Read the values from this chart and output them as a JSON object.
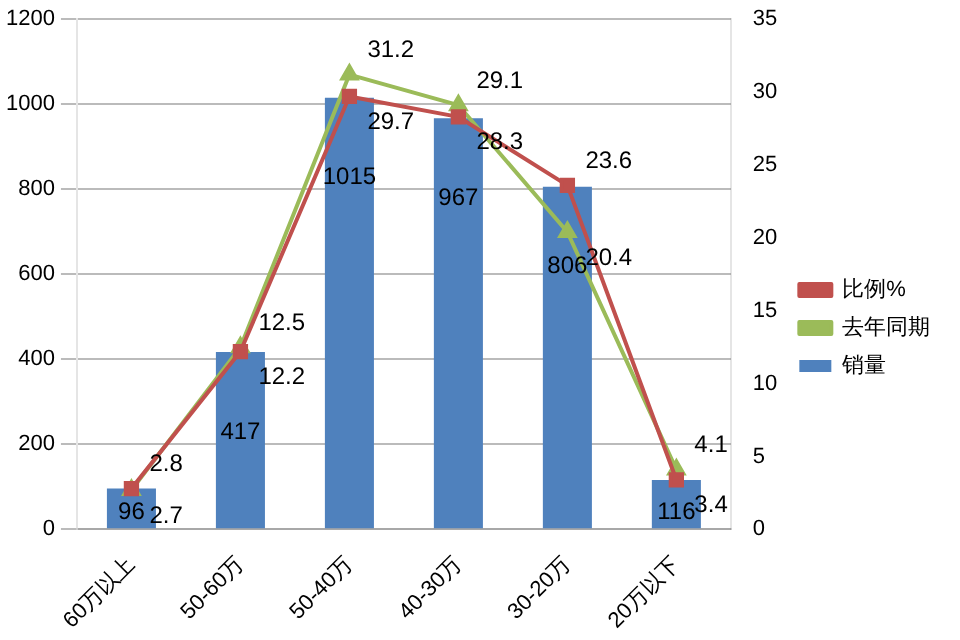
{
  "chart_data": {
    "type": "bar",
    "categories": [
      "60万以上",
      "50-60万",
      "50-40万",
      "40-30万",
      "30-20万",
      "20万以下"
    ],
    "series": [
      {
        "name": "销量",
        "color": "#4f81bd",
        "values": [
          96,
          417,
          1015,
          967,
          806,
          116
        ]
      },
      {
        "name": "比例%",
        "type": "line",
        "axis": "y2",
        "color": "#c0504d",
        "marker": "square",
        "values": [
          2.8,
          12.2,
          29.7,
          28.3,
          23.6,
          3.4
        ]
      },
      {
        "name": "去年同期",
        "type": "line",
        "axis": "y2",
        "color": "#9bbb59",
        "marker": "triangle",
        "values": [
          2.7,
          12.5,
          31.2,
          29.1,
          20.4,
          4.1
        ]
      }
    ],
    "ylim": [
      0,
      1200
    ],
    "yticks": [
      0,
      200,
      400,
      600,
      800,
      1000,
      1200
    ],
    "y2lim": [
      0,
      35
    ],
    "y2ticks": [
      0,
      5,
      10,
      15,
      20,
      25,
      30,
      35
    ],
    "grid": "y",
    "legend": "right",
    "data_labels": true
  }
}
